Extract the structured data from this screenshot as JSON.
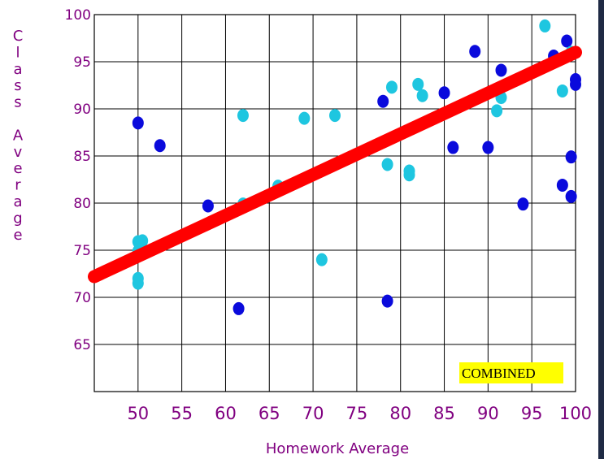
{
  "chart_data": {
    "type": "scatter",
    "xlabel": "Homework Average",
    "ylabel": "Class Average",
    "annotation": "COMBINED",
    "xlim": [
      45,
      100
    ],
    "ylim": [
      60,
      100
    ],
    "x_ticks": [
      "50",
      "55",
      "60",
      "65",
      "70",
      "75",
      "80",
      "85",
      "90",
      "95",
      "100"
    ],
    "y_ticks": [
      "100",
      "95",
      "90",
      "85",
      "80",
      "75",
      "70",
      "65"
    ],
    "grid": true,
    "series": [
      {
        "color": "#0a0adc",
        "points": [
          [
            50,
            88.5
          ],
          [
            52.5,
            86.1
          ],
          [
            58,
            79.7
          ],
          [
            61.5,
            68.8
          ],
          [
            78,
            90.8
          ],
          [
            78.5,
            69.6
          ],
          [
            85,
            91.7
          ],
          [
            86,
            85.9
          ],
          [
            88.5,
            96.1
          ],
          [
            90,
            85.9
          ],
          [
            91.5,
            94.1
          ],
          [
            94,
            79.9
          ],
          [
            97.5,
            95.6
          ],
          [
            98.5,
            81.9
          ],
          [
            99,
            97.2
          ],
          [
            99.5,
            84.9
          ],
          [
            99.5,
            80.7
          ],
          [
            100,
            93.1
          ],
          [
            100,
            92.6
          ]
        ]
      },
      {
        "color": "#1ec6e0",
        "points": [
          [
            50,
            75.9
          ],
          [
            50.5,
            76
          ],
          [
            50,
            74.9
          ],
          [
            50,
            72
          ],
          [
            50,
            71.5
          ],
          [
            62,
            89.3
          ],
          [
            62,
            79.9
          ],
          [
            66,
            81.8
          ],
          [
            69,
            89
          ],
          [
            71,
            74
          ],
          [
            72.5,
            89.3
          ],
          [
            78.5,
            84.1
          ],
          [
            79,
            92.3
          ],
          [
            81,
            83.4
          ],
          [
            81,
            83
          ],
          [
            82,
            92.6
          ],
          [
            82.5,
            91.4
          ],
          [
            91,
            89.8
          ],
          [
            91.5,
            91.2
          ],
          [
            96.5,
            98.8
          ],
          [
            98.5,
            91.9
          ],
          [
            99.5,
            96
          ]
        ]
      }
    ],
    "trendline": {
      "color": "#ff0000",
      "from": [
        45,
        72.2
      ],
      "to": [
        100,
        96
      ]
    },
    "colors": {
      "axis_label": "#800080",
      "tick_label": "#800080",
      "annotation_bg": "#ffff00",
      "edge_rule": "#1f2a44"
    }
  }
}
